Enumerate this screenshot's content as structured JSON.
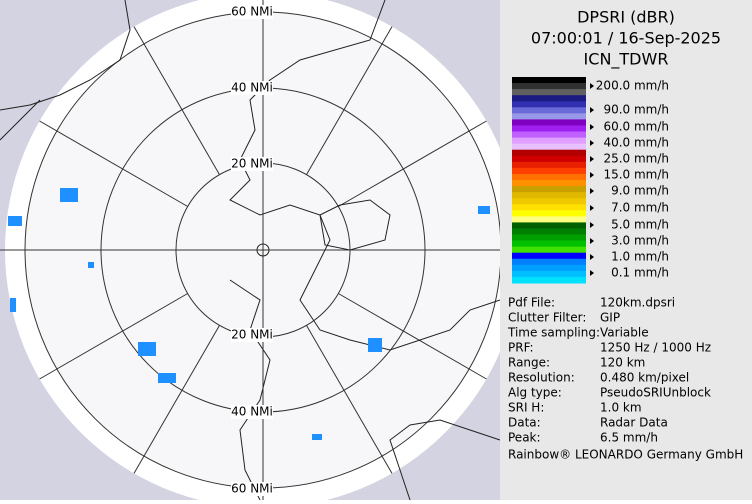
{
  "header": {
    "product": "DPSRI (dBR)",
    "timestamp": "07:00:01 / 16-Sep-2025",
    "site": "ICN_TDWR"
  },
  "legend": {
    "labels": [
      "200.0 mm/h",
      "90.0 mm/h",
      "60.0 mm/h",
      "40.0 mm/h",
      "25.0 mm/h",
      "15.0 mm/h",
      "9.0 mm/h",
      "7.0 mm/h",
      "5.0 mm/h",
      "3.0 mm/h",
      "1.0 mm/h",
      "0.1 mm/h"
    ]
  },
  "rings": {
    "top": [
      "60 NMi",
      "40 NMi",
      "20 NMi"
    ],
    "bottom": [
      "20 NMi",
      "40 NMi",
      "60 NMi"
    ]
  },
  "info": {
    "rows": [
      [
        "Pdf File:",
        "120km.dpsri"
      ],
      [
        "Clutter Filter:",
        "GIP"
      ],
      [
        "Time sampling:",
        "Variable"
      ],
      [
        "PRF:",
        "1250 Hz / 1000 Hz"
      ],
      [
        "Range:",
        "120 km"
      ],
      [
        "Resolution:",
        "0.480 km/pixel"
      ],
      [
        "Alg type:",
        "PseudoSRIUnblock"
      ],
      [
        "SRI H:",
        "1.0 km"
      ],
      [
        "Data:",
        "Radar Data"
      ],
      [
        "Peak:",
        "6.5 mm/h"
      ]
    ]
  },
  "footer": "Rainbow® LEONARDO Germany GmbH"
}
